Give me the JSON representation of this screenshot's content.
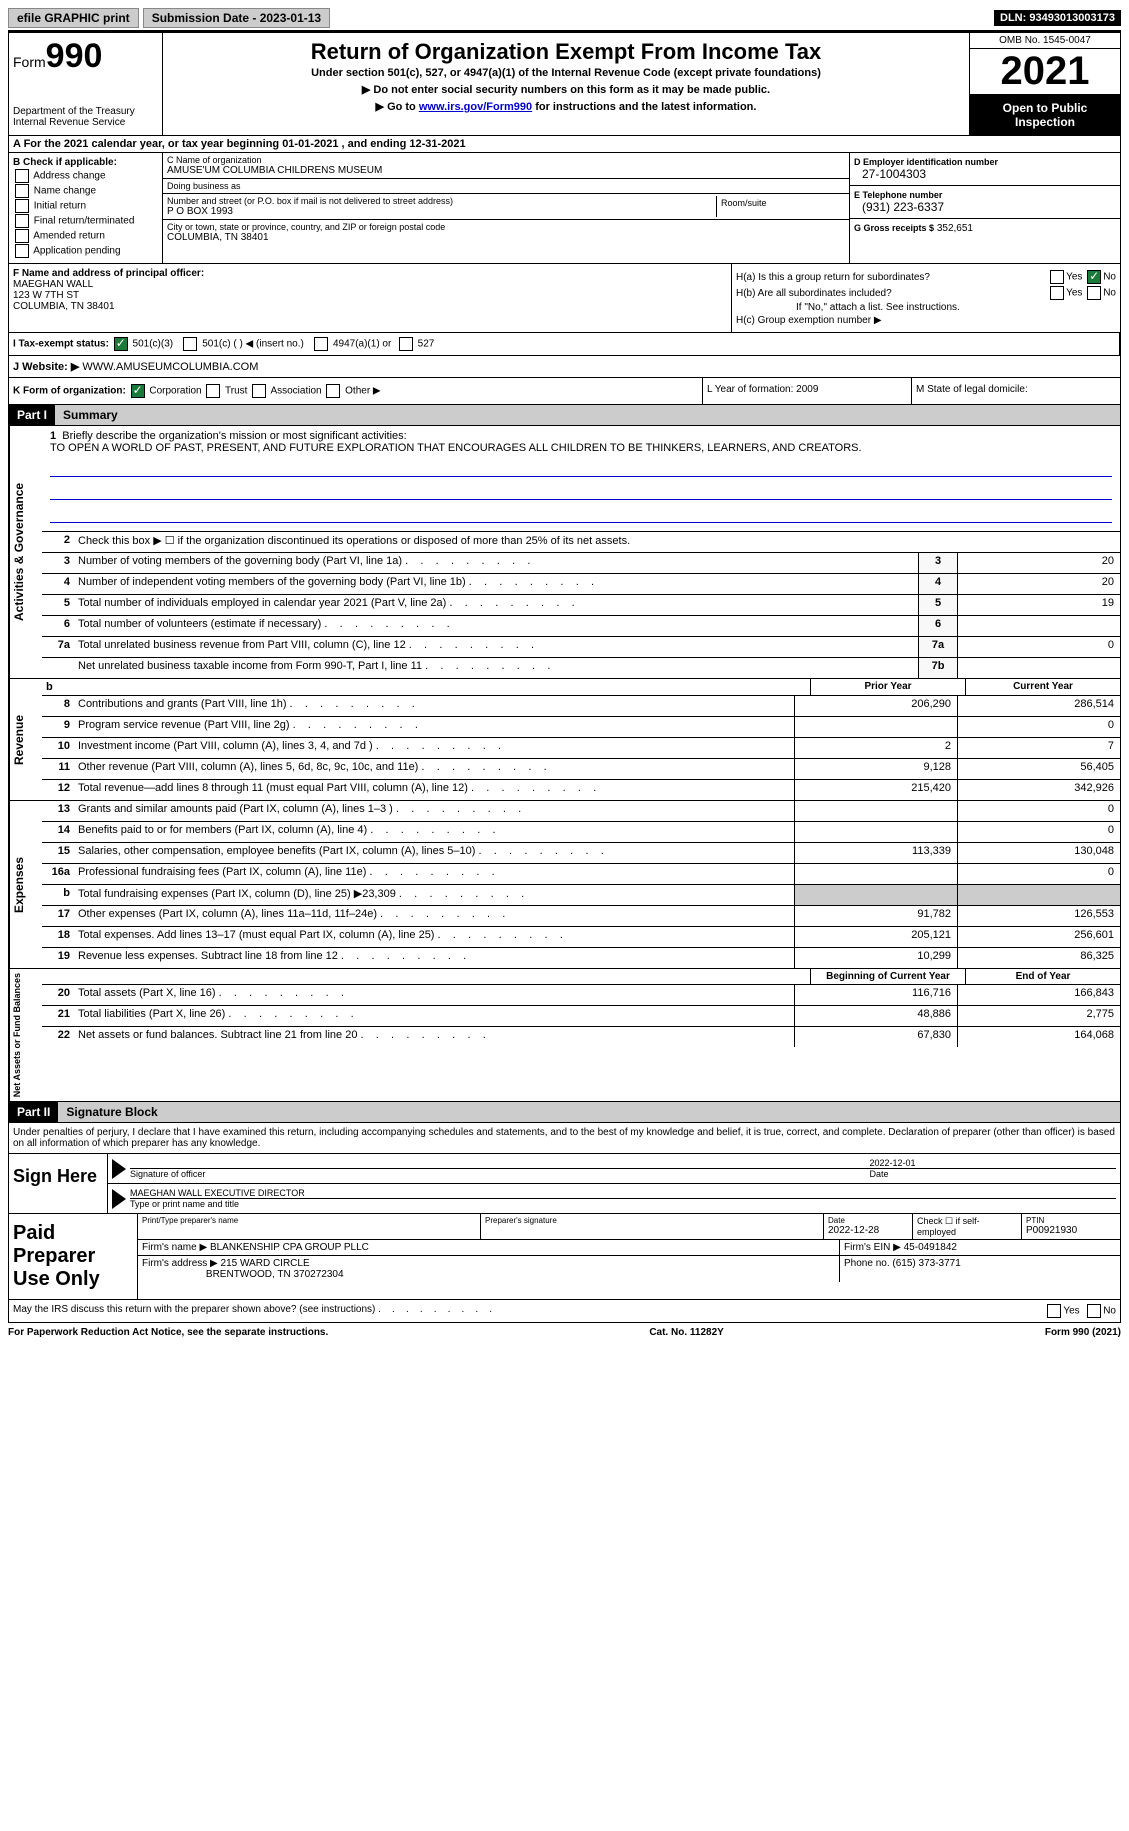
{
  "top_bar": {
    "efile_btn": "efile GRAPHIC print",
    "sub_date_label": "Submission Date - 2023-01-13",
    "dln": "DLN: 93493013003173"
  },
  "header": {
    "form_label": "Form",
    "form_number": "990",
    "dept": "Department of the Treasury",
    "irs": "Internal Revenue Service",
    "title": "Return of Organization Exempt From Income Tax",
    "subtitle": "Under section 501(c), 527, or 4947(a)(1) of the Internal Revenue Code (except private foundations)",
    "instr1": "▶ Do not enter social security numbers on this form as it may be made public.",
    "instr2_pre": "▶ Go to ",
    "instr2_link": "www.irs.gov/Form990",
    "instr2_post": " for instructions and the latest information.",
    "omb": "OMB No. 1545-0047",
    "year": "2021",
    "open_public": "Open to Public Inspection"
  },
  "row_a": "A For the 2021 calendar year, or tax year beginning 01-01-2021    , and ending 12-31-2021",
  "col_b": {
    "label": "B Check if applicable:",
    "items": [
      "Address change",
      "Name change",
      "Initial return",
      "Final return/terminated",
      "Amended return",
      "Application pending"
    ]
  },
  "col_c": {
    "name_label": "C Name of organization",
    "name": "AMUSE'UM COLUMBIA CHILDRENS MUSEUM",
    "dba_label": "Doing business as",
    "dba": "",
    "addr_label": "Number and street (or P.O. box if mail is not delivered to street address)",
    "addr": "P O BOX 1993",
    "room_label": "Room/suite",
    "city_label": "City or town, state or province, country, and ZIP or foreign postal code",
    "city": "COLUMBIA, TN   38401"
  },
  "col_d": {
    "ein_label": "D Employer identification number",
    "ein": "27-1004303",
    "tel_label": "E Telephone number",
    "tel": "(931) 223-6337",
    "gross_label": "G Gross receipts $",
    "gross": "352,651"
  },
  "col_f": {
    "label": "F Name and address of principal officer:",
    "name": "MAEGHAN WALL",
    "addr1": "123 W 7TH ST",
    "addr2": "COLUMBIA, TN  38401"
  },
  "col_h": {
    "ha": "H(a)  Is this a group return for subordinates?",
    "hb": "H(b)  Are all subordinates included?",
    "hb_note": "If \"No,\" attach a list. See instructions.",
    "hc": "H(c)  Group exemption number ▶"
  },
  "row_i": {
    "label": "I   Tax-exempt status:",
    "opts": [
      "501(c)(3)",
      "501(c) (   ) ◀ (insert no.)",
      "4947(a)(1) or",
      "527"
    ]
  },
  "row_j": {
    "label": "J   Website: ▶",
    "val": "WWW.AMUSEUMCOLUMBIA.COM"
  },
  "row_k": {
    "k": "K Form of organization:",
    "opts": [
      "Corporation",
      "Trust",
      "Association",
      "Other ▶"
    ],
    "l": "L Year of formation: 2009",
    "m": "M State of legal domicile:"
  },
  "part1": {
    "header": "Part I",
    "title": "Summary",
    "line1_label": "Briefly describe the organization's mission or most significant activities:",
    "line1_text": "TO OPEN A WORLD OF PAST, PRESENT, AND FUTURE EXPLORATION THAT ENCOURAGES ALL CHILDREN TO BE THINKERS, LEARNERS, AND CREATORS.",
    "line2": "Check this box ▶ ☐  if the organization discontinued its operations or disposed of more than 25% of its net assets.",
    "lines_gov": [
      {
        "n": "3",
        "d": "Number of voting members of the governing body (Part VI, line 1a)",
        "box": "3",
        "v": "20"
      },
      {
        "n": "4",
        "d": "Number of independent voting members of the governing body (Part VI, line 1b)",
        "box": "4",
        "v": "20"
      },
      {
        "n": "5",
        "d": "Total number of individuals employed in calendar year 2021 (Part V, line 2a)",
        "box": "5",
        "v": "19"
      },
      {
        "n": "6",
        "d": "Total number of volunteers (estimate if necessary)",
        "box": "6",
        "v": ""
      },
      {
        "n": "7a",
        "d": "Total unrelated business revenue from Part VIII, column (C), line 12",
        "box": "7a",
        "v": "0"
      },
      {
        "n": "",
        "d": "Net unrelated business taxable income from Form 990-T, Part I, line 11",
        "box": "7b",
        "v": ""
      }
    ],
    "col_prior": "Prior Year",
    "col_current": "Current Year",
    "lines_rev": [
      {
        "n": "8",
        "d": "Contributions and grants (Part VIII, line 1h)",
        "p": "206,290",
        "c": "286,514"
      },
      {
        "n": "9",
        "d": "Program service revenue (Part VIII, line 2g)",
        "p": "",
        "c": "0"
      },
      {
        "n": "10",
        "d": "Investment income (Part VIII, column (A), lines 3, 4, and 7d )",
        "p": "2",
        "c": "7"
      },
      {
        "n": "11",
        "d": "Other revenue (Part VIII, column (A), lines 5, 6d, 8c, 9c, 10c, and 11e)",
        "p": "9,128",
        "c": "56,405"
      },
      {
        "n": "12",
        "d": "Total revenue—add lines 8 through 11 (must equal Part VIII, column (A), line 12)",
        "p": "215,420",
        "c": "342,926"
      }
    ],
    "lines_exp": [
      {
        "n": "13",
        "d": "Grants and similar amounts paid (Part IX, column (A), lines 1–3 )",
        "p": "",
        "c": "0"
      },
      {
        "n": "14",
        "d": "Benefits paid to or for members (Part IX, column (A), line 4)",
        "p": "",
        "c": "0"
      },
      {
        "n": "15",
        "d": "Salaries, other compensation, employee benefits (Part IX, column (A), lines 5–10)",
        "p": "113,339",
        "c": "130,048"
      },
      {
        "n": "16a",
        "d": "Professional fundraising fees (Part IX, column (A), line 11e)",
        "p": "",
        "c": "0"
      },
      {
        "n": "b",
        "d": "Total fundraising expenses (Part IX, column (D), line 25) ▶23,309",
        "p": "grey",
        "c": "grey"
      },
      {
        "n": "17",
        "d": "Other expenses (Part IX, column (A), lines 11a–11d, 11f–24e)",
        "p": "91,782",
        "c": "126,553"
      },
      {
        "n": "18",
        "d": "Total expenses. Add lines 13–17 (must equal Part IX, column (A), line 25)",
        "p": "205,121",
        "c": "256,601"
      },
      {
        "n": "19",
        "d": "Revenue less expenses. Subtract line 18 from line 12",
        "p": "10,299",
        "c": "86,325"
      }
    ],
    "col_begin": "Beginning of Current Year",
    "col_end": "End of Year",
    "lines_net": [
      {
        "n": "20",
        "d": "Total assets (Part X, line 16)",
        "p": "116,716",
        "c": "166,843"
      },
      {
        "n": "21",
        "d": "Total liabilities (Part X, line 26)",
        "p": "48,886",
        "c": "2,775"
      },
      {
        "n": "22",
        "d": "Net assets or fund balances. Subtract line 21 from line 20",
        "p": "67,830",
        "c": "164,068"
      }
    ],
    "side_gov": "Activities & Governance",
    "side_rev": "Revenue",
    "side_exp": "Expenses",
    "side_net": "Net Assets or Fund Balances"
  },
  "part2": {
    "header": "Part II",
    "title": "Signature Block",
    "decl": "Under penalties of perjury, I declare that I have examined this return, including accompanying schedules and statements, and to the best of my knowledge and belief, it is true, correct, and complete. Declaration of preparer (other than officer) is based on all information of which preparer has any knowledge.",
    "sign_here": "Sign Here",
    "sig_officer": "Signature of officer",
    "sig_date": "Date",
    "sig_date_val": "2022-12-01",
    "sig_name": "MAEGHAN WALL EXECUTIVE DIRECTOR",
    "sig_name_label": "Type or print name and title",
    "paid_prep": "Paid Preparer Use Only",
    "prep_name_label": "Print/Type preparer's name",
    "prep_sig_label": "Preparer's signature",
    "prep_date_label": "Date",
    "prep_date": "2022-12-28",
    "prep_check": "Check ☐ if self-employed",
    "ptin_label": "PTIN",
    "ptin": "P00921930",
    "firm_name_label": "Firm's name    ▶",
    "firm_name": "BLANKENSHIP CPA GROUP PLLC",
    "firm_ein_label": "Firm's EIN ▶",
    "firm_ein": "45-0491842",
    "firm_addr_label": "Firm's address ▶",
    "firm_addr1": "215 WARD CIRCLE",
    "firm_addr2": "BRENTWOOD, TN  370272304",
    "firm_phone_label": "Phone no.",
    "firm_phone": "(615) 373-3771",
    "discuss": "May the IRS discuss this return with the preparer shown above? (see instructions)"
  },
  "footer": {
    "pra": "For Paperwork Reduction Act Notice, see the separate instructions.",
    "cat": "Cat. No. 11282Y",
    "form": "Form 990 (2021)"
  }
}
